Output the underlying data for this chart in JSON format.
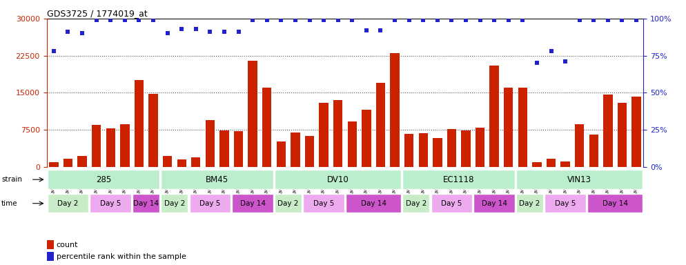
{
  "title": "GDS3725 / 1774019_at",
  "samples": [
    "GSM291115",
    "GSM291116",
    "GSM291117",
    "GSM291140",
    "GSM291141",
    "GSM291142",
    "GSM291000",
    "GSM291001",
    "GSM291462",
    "GSM291523",
    "GSM291524",
    "GSM291555",
    "GSM296856",
    "GSM296857",
    "GSM290992",
    "GSM290993",
    "GSM290989",
    "GSM290990",
    "GSM290991",
    "GSM291538",
    "GSM291539",
    "GSM291540",
    "GSM290994",
    "GSM290995",
    "GSM290996",
    "GSM291435",
    "GSM291439",
    "GSM291445",
    "GSM291554",
    "GSM296858",
    "GSM296859",
    "GSM290997",
    "GSM290998",
    "GSM290901",
    "GSM290902",
    "GSM290903",
    "GSM291525",
    "GSM296860",
    "GSM296861",
    "GSM291002",
    "GSM291003",
    "GSM292045"
  ],
  "counts": [
    900,
    1700,
    2200,
    8500,
    7800,
    8700,
    17500,
    14800,
    2200,
    1500,
    1900,
    9500,
    7400,
    7200,
    21500,
    16000,
    5100,
    6900,
    6200,
    13000,
    13500,
    9200,
    11500,
    17000,
    23000,
    6700,
    6800,
    5900,
    7600,
    7400,
    8000,
    20500,
    16000,
    16000,
    900,
    1600,
    1100,
    8700,
    6600,
    14700,
    13000,
    14200
  ],
  "percentile_ranks": [
    78,
    91,
    90,
    99,
    99,
    99,
    99,
    99,
    90,
    93,
    93,
    91,
    91,
    91,
    99,
    99,
    99,
    99,
    99,
    99,
    99,
    99,
    92,
    92,
    99,
    99,
    99,
    99,
    99,
    99,
    99,
    99,
    99,
    99,
    70,
    78,
    71,
    99,
    99,
    99,
    99,
    99
  ],
  "strains": [
    {
      "label": "285",
      "start": 0,
      "end": 8
    },
    {
      "label": "BM45",
      "start": 8,
      "end": 16
    },
    {
      "label": "DV10",
      "start": 16,
      "end": 25
    },
    {
      "label": "EC1118",
      "start": 25,
      "end": 33
    },
    {
      "label": "VIN13",
      "start": 33,
      "end": 42
    }
  ],
  "times": [
    {
      "label": "Day 2",
      "start": 0,
      "end": 3,
      "color": "#c8ecc8"
    },
    {
      "label": "Day 5",
      "start": 3,
      "end": 6,
      "color": "#eeaaee"
    },
    {
      "label": "Day 14",
      "start": 6,
      "end": 8,
      "color": "#cc55cc"
    },
    {
      "label": "Day 2",
      "start": 8,
      "end": 10,
      "color": "#c8ecc8"
    },
    {
      "label": "Day 5",
      "start": 10,
      "end": 13,
      "color": "#eeaaee"
    },
    {
      "label": "Day 14",
      "start": 13,
      "end": 16,
      "color": "#cc55cc"
    },
    {
      "label": "Day 2",
      "start": 16,
      "end": 18,
      "color": "#c8ecc8"
    },
    {
      "label": "Day 5",
      "start": 18,
      "end": 21,
      "color": "#eeaaee"
    },
    {
      "label": "Day 14",
      "start": 21,
      "end": 25,
      "color": "#cc55cc"
    },
    {
      "label": "Day 2",
      "start": 25,
      "end": 27,
      "color": "#c8ecc8"
    },
    {
      "label": "Day 5",
      "start": 27,
      "end": 30,
      "color": "#eeaaee"
    },
    {
      "label": "Day 14",
      "start": 30,
      "end": 33,
      "color": "#cc55cc"
    },
    {
      "label": "Day 2",
      "start": 33,
      "end": 35,
      "color": "#c8ecc8"
    },
    {
      "label": "Day 5",
      "start": 35,
      "end": 38,
      "color": "#eeaaee"
    },
    {
      "label": "Day 14",
      "start": 38,
      "end": 42,
      "color": "#cc55cc"
    }
  ],
  "bar_color": "#cc2200",
  "dot_color": "#2222cc",
  "ylim_left": [
    0,
    30000
  ],
  "ylim_right": [
    0,
    100
  ],
  "yticks_left": [
    0,
    7500,
    15000,
    22500,
    30000
  ],
  "yticks_right": [
    0,
    25,
    50,
    75,
    100
  ],
  "strain_bg_color": "#bbeecc",
  "background_color": "#ffffff"
}
